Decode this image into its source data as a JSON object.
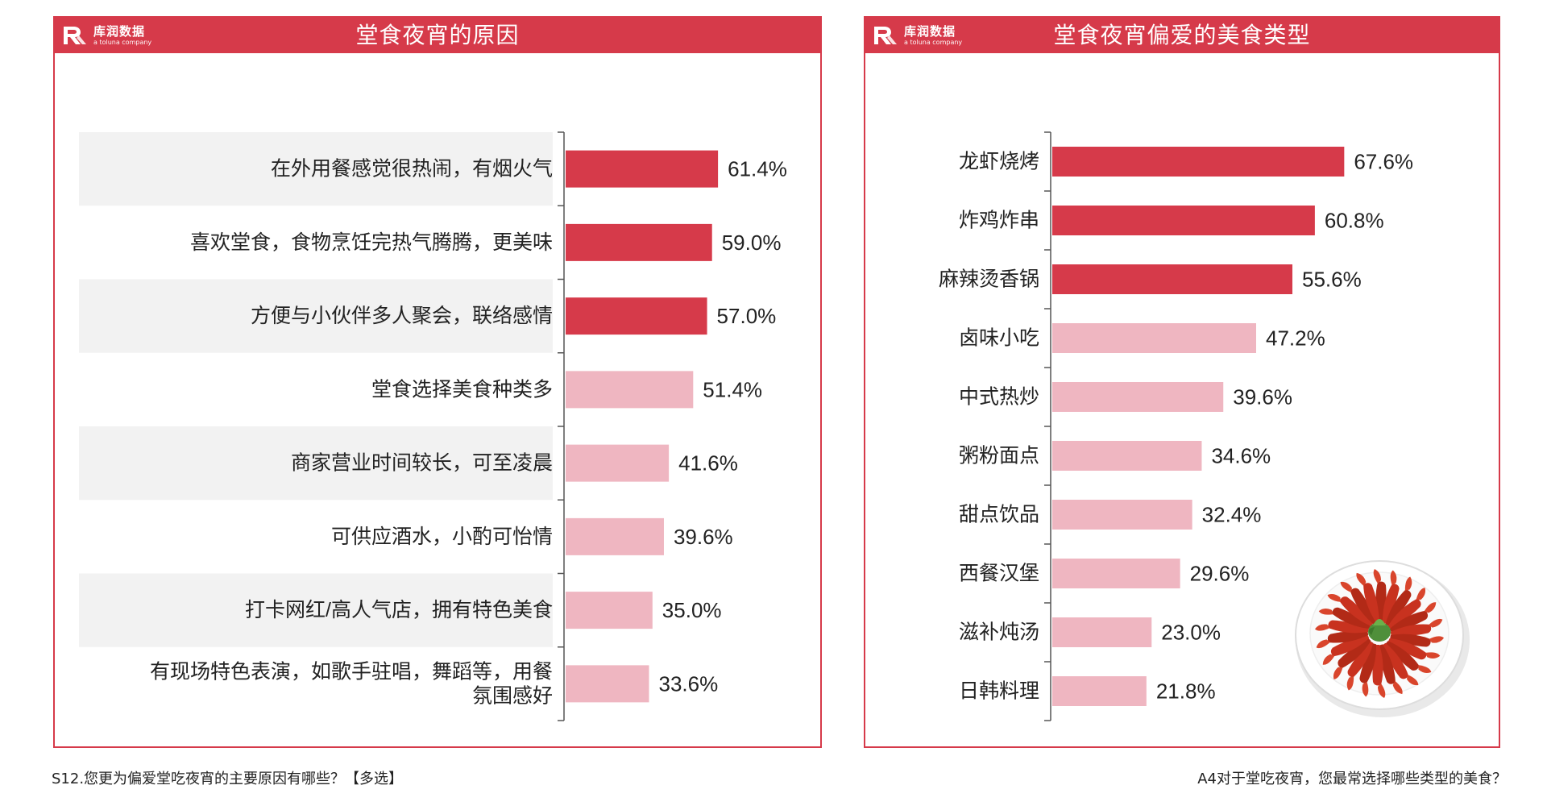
{
  "logo": {
    "name": "库润数据",
    "subtitle": "a toluna company"
  },
  "colors": {
    "frame": "#d63a4a",
    "bar_highlight": "#d63a4a",
    "bar_normal": "#efb6c1",
    "row_band": "#f2f2f2",
    "axis": "#555555"
  },
  "chart_data": [
    {
      "type": "bar",
      "orientation": "horizontal",
      "title": "堂食夜宵的原因",
      "categories": [
        "在外用餐感觉很热闹，有烟火气",
        "喜欢堂食，食物烹饪完热气腾腾，更美味",
        "方便与小伙伴多人聚会，联络感情",
        "堂食选择美食种类多",
        "商家营业时间较长，可至凌晨",
        "可供应酒水，小酌可怡情",
        "打卡网红/高人气店，拥有特色美食",
        "有现场特色表演，如歌手驻唱，舞蹈等，用餐氛围感好"
      ],
      "category_lines": [
        [
          "在外用餐感觉很热闹，有烟火气"
        ],
        [
          "喜欢堂食，食物烹饪完热气腾腾，更美味"
        ],
        [
          "方便与小伙伴多人聚会，联络感情"
        ],
        [
          "堂食选择美食种类多"
        ],
        [
          "商家营业时间较长，可至凌晨"
        ],
        [
          "可供应酒水，小酌可怡情"
        ],
        [
          "打卡网红/高人气店，拥有特色美食"
        ],
        [
          "有现场特色表演，如歌手驻唱，舞蹈等，用餐",
          "氛围感好"
        ]
      ],
      "values": [
        61.4,
        59.0,
        57.0,
        51.4,
        41.6,
        39.6,
        35.0,
        33.6
      ],
      "value_labels": [
        "61.4%",
        "59.0%",
        "57.0%",
        "51.4%",
        "41.6%",
        "39.6%",
        "35.0%",
        "33.6%"
      ],
      "highlight": [
        true,
        true,
        true,
        false,
        false,
        false,
        false,
        false
      ],
      "xlim": [
        0,
        100
      ],
      "xlabel": "",
      "ylabel": "",
      "grid": false,
      "row_banding": true
    },
    {
      "type": "bar",
      "orientation": "horizontal",
      "title": "堂食夜宵偏爱的美食类型",
      "categories": [
        "龙虾烧烤",
        "炸鸡炸串",
        "麻辣烫香锅",
        "卤味小吃",
        "中式热炒",
        "粥粉面点",
        "甜点饮品",
        "西餐汉堡",
        "滋补炖汤",
        "日韩料理"
      ],
      "category_lines": [
        [
          "龙虾烧烤"
        ],
        [
          "炸鸡炸串"
        ],
        [
          "麻辣烫香锅"
        ],
        [
          "卤味小吃"
        ],
        [
          "中式热炒"
        ],
        [
          "粥粉面点"
        ],
        [
          "甜点饮品"
        ],
        [
          "西餐汉堡"
        ],
        [
          "滋补炖汤"
        ],
        [
          "日韩料理"
        ]
      ],
      "values": [
        67.6,
        60.8,
        55.6,
        47.2,
        39.6,
        34.6,
        32.4,
        29.6,
        23.0,
        21.8
      ],
      "value_labels": [
        "67.6%",
        "60.8%",
        "55.6%",
        "47.2%",
        "39.6%",
        "34.6%",
        "32.4%",
        "29.6%",
        "23.0%",
        "21.8%"
      ],
      "highlight": [
        true,
        true,
        true,
        false,
        false,
        false,
        false,
        false,
        false,
        false
      ],
      "xlim": [
        0,
        100
      ],
      "xlabel": "",
      "ylabel": "",
      "grid": false,
      "row_banding": false
    }
  ],
  "footnotes": {
    "left": "S12.您更为偏爱堂吃夜宵的主要原因有哪些？【多选】",
    "right": "A4对于堂吃夜宵，您最常选择哪些类型的美食？"
  }
}
